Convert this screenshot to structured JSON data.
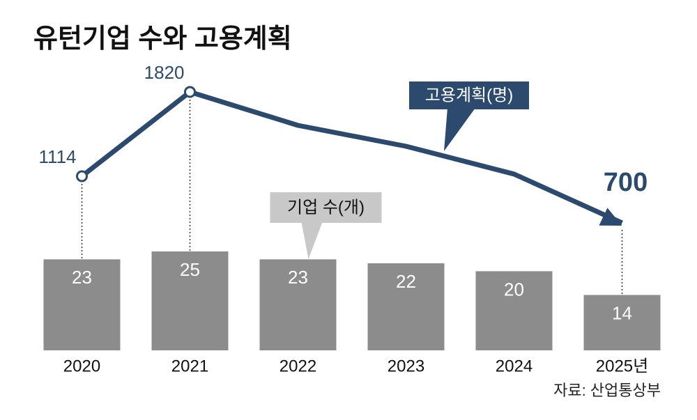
{
  "chart_data": {
    "type": "combo",
    "title": "유턴기업 수와 고용계획",
    "categories": [
      "2020",
      "2021",
      "2022",
      "2023",
      "2024",
      "2025년"
    ],
    "series": [
      {
        "name": "기업 수(개)",
        "type": "bar",
        "color": "#8c8c8c",
        "label_color": "#c8c8c8",
        "values": [
          23,
          25,
          23,
          22,
          20,
          14
        ]
      },
      {
        "name": "고용계획(명)",
        "type": "line",
        "color": "#2c4a6e",
        "label_color": "#2c4a6e",
        "values": [
          1114,
          1820,
          1540,
          1365,
          1132,
          700
        ],
        "value_labels": [
          "1114",
          "1820",
          null,
          null,
          null,
          "700"
        ]
      }
    ],
    "source": "자료: 산업통상부"
  }
}
